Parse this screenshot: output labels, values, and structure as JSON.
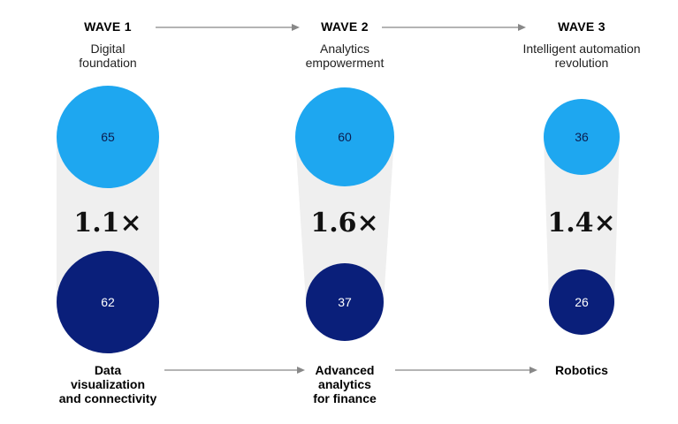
{
  "waves": [
    {
      "title": "WAVE 1",
      "subtitle_lines": [
        "Digital",
        "foundation"
      ],
      "top_value": 65,
      "bottom_value": 62,
      "multiplier": "1.1×",
      "category_lines": [
        "Data",
        "visualization",
        "and connectivity"
      ]
    },
    {
      "title": "WAVE 2",
      "subtitle_lines": [
        "Analytics",
        "empowerment"
      ],
      "top_value": 60,
      "bottom_value": 37,
      "multiplier": "1.6×",
      "category_lines": [
        "Advanced",
        "analytics",
        "for finance"
      ]
    },
    {
      "title": "WAVE 3",
      "subtitle_lines": [
        "Intelligent automation",
        "revolution"
      ],
      "top_value": 36,
      "bottom_value": 26,
      "multiplier": "1.4×",
      "category_lines": [
        "Robotics"
      ]
    }
  ],
  "colors": {
    "top_circle": "#1ea7f0",
    "bottom_circle": "#0a1f7a",
    "connector": "#efefef",
    "arrow": "#888888",
    "top_text": "#0b1d4f",
    "bottom_text": "#ffffff"
  }
}
